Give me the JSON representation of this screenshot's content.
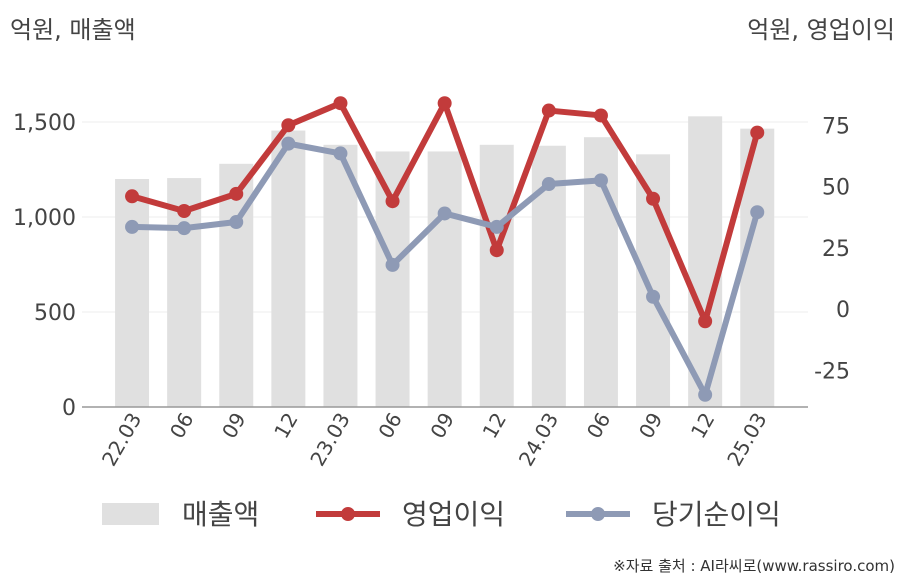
{
  "chart_data": {
    "type": "bar+line",
    "left_axis_label": "억원, 매출액",
    "right_axis_label": "억원, 영업이익",
    "categories": [
      "22.03",
      "06",
      "09",
      "12",
      "23.03",
      "06",
      "09",
      "12",
      "24.03",
      "06",
      "09",
      "12",
      "25.03"
    ],
    "left_ylim": [
      0,
      1700
    ],
    "left_ticks": [
      "0",
      "500",
      "1,000",
      "1,500"
    ],
    "right_ylim": [
      -40,
      90
    ],
    "right_ticks": [
      "-25",
      "0",
      "25",
      "50",
      "75"
    ],
    "grid": true,
    "legend_position": "bottom",
    "series": [
      {
        "name": "매출액",
        "type": "bar",
        "axis": "left",
        "color": "#e0e0e0",
        "values": [
          1200,
          1205,
          1280,
          1455,
          1380,
          1345,
          1345,
          1380,
          1375,
          1420,
          1330,
          1530,
          1465
        ]
      },
      {
        "name": "영업이익",
        "type": "line",
        "axis": "right",
        "color": "#c23b3b",
        "values": [
          46,
          40,
          47,
          75,
          84,
          44,
          84,
          24,
          81,
          79,
          45,
          -5,
          72
        ]
      },
      {
        "name": "당기순이익",
        "type": "line",
        "axis": "right",
        "color": "#8e9ab5",
        "values": [
          33.5,
          33,
          35.5,
          67.5,
          63.5,
          18,
          39,
          33.5,
          51,
          52.5,
          5,
          -35,
          39.5
        ]
      }
    ]
  },
  "source_text": "※자료 출처 : AI라씨로(www.rassiro.com)"
}
